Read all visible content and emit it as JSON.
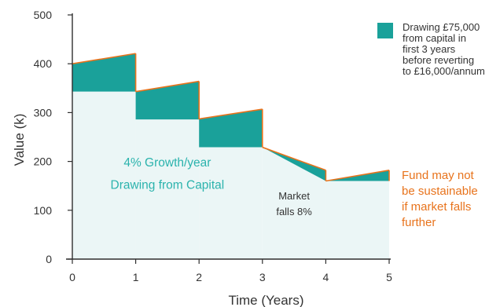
{
  "chart_data": {
    "type": "area",
    "title": "",
    "xlabel": "Time (Years)",
    "ylabel": "Value (k)",
    "xlim": [
      0,
      5
    ],
    "ylim": [
      0,
      500
    ],
    "x_ticks": [
      "0",
      "1",
      "2",
      "3",
      "4",
      "5"
    ],
    "y_ticks": [
      "0",
      "100",
      "200",
      "300",
      "400",
      "500"
    ],
    "grid": false,
    "legend_position": "top-right",
    "series": [
      {
        "name": "Drawing £75,000 from capital in first 3 years before reverting to £16,000/annum",
        "segments": [
          {
            "x": [
              0,
              1
            ],
            "base": [
              343,
              343
            ],
            "top": [
              400,
              421
            ]
          },
          {
            "x": [
              1,
              2
            ],
            "base": [
              286,
              286
            ],
            "top": [
              343,
              364
            ]
          },
          {
            "x": [
              2,
              3
            ],
            "base": [
              229,
              229
            ],
            "top": [
              287,
              307
            ]
          },
          {
            "x": [
              3,
              4
            ],
            "base": [
              229,
              160
            ],
            "top": [
              229,
              182
            ]
          },
          {
            "x": [
              4,
              5
            ],
            "base": [
              160,
              160
            ],
            "top": [
              160,
              182
            ]
          }
        ]
      }
    ],
    "fund_value": [
      {
        "x": [
          0,
          1
        ],
        "y": [
          343,
          343
        ]
      },
      {
        "x": [
          1,
          2
        ],
        "y": [
          286,
          286
        ]
      },
      {
        "x": [
          2,
          3
        ],
        "y": [
          229,
          229
        ]
      },
      {
        "x": [
          3,
          4
        ],
        "y": [
          229,
          160
        ]
      },
      {
        "x": [
          4,
          5
        ],
        "y": [
          160,
          160
        ]
      }
    ],
    "annotations": [
      {
        "text": "4% Growth/year",
        "x": 1.5,
        "y": 190,
        "color": "#2bb3ad"
      },
      {
        "text": "Drawing from Capital",
        "x": 1.5,
        "y": 144,
        "color": "#2bb3ad"
      },
      {
        "text": "Market",
        "x": 3.5,
        "y": 122,
        "color": "#333333"
      },
      {
        "text": "falls 8%",
        "x": 3.5,
        "y": 90,
        "color": "#333333"
      }
    ]
  },
  "legend": {
    "label": "Drawing £75,000\nfrom capital in\nfirst 3 years\nbefore reverting\nto £16,000/annum"
  },
  "note": {
    "text": "Fund may not\nbe sustainable\nif market falls\nfurther"
  },
  "colors": {
    "teal": "#1aa19a",
    "light_fill": "#ebf6f6",
    "orange_edge": "#e8731c",
    "axis": "#2f2f2f",
    "annotation_teal": "#2bb3ad",
    "note_orange": "#e8731c"
  }
}
